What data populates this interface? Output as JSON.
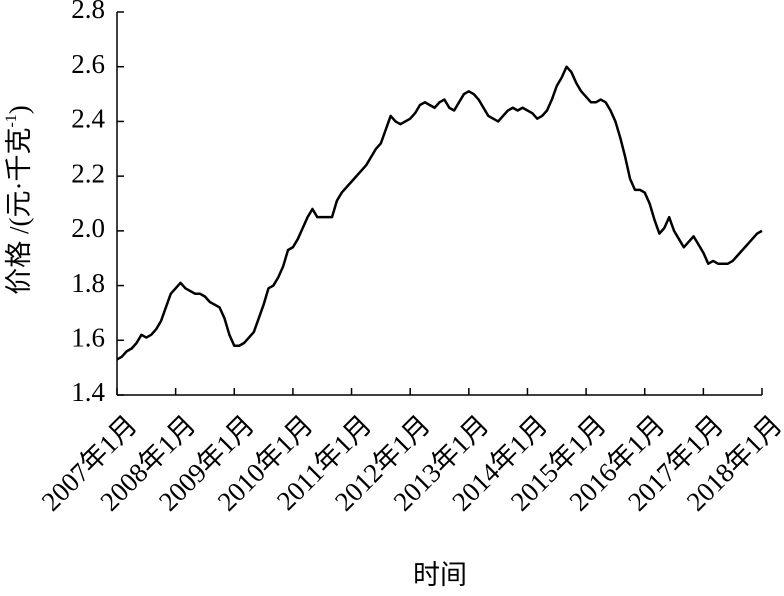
{
  "chart_data": {
    "type": "line",
    "y_label": {
      "text": "价格 /(元·千克",
      "superscript": "-1",
      "close": ")"
    },
    "x_label": "时间",
    "x": [
      "2007-01",
      "2007-02",
      "2007-03",
      "2007-04",
      "2007-05",
      "2007-06",
      "2007-07",
      "2007-08",
      "2007-09",
      "2007-10",
      "2007-11",
      "2007-12",
      "2008-01",
      "2008-02",
      "2008-03",
      "2008-04",
      "2008-05",
      "2008-06",
      "2008-07",
      "2008-08",
      "2008-09",
      "2008-10",
      "2008-11",
      "2008-12",
      "2009-01",
      "2009-02",
      "2009-03",
      "2009-04",
      "2009-05",
      "2009-06",
      "2009-07",
      "2009-08",
      "2009-09",
      "2009-10",
      "2009-11",
      "2009-12",
      "2010-01",
      "2010-02",
      "2010-03",
      "2010-04",
      "2010-05",
      "2010-06",
      "2010-07",
      "2010-08",
      "2010-09",
      "2010-10",
      "2010-11",
      "2010-12",
      "2011-01",
      "2011-02",
      "2011-03",
      "2011-04",
      "2011-05",
      "2011-06",
      "2011-07",
      "2011-08",
      "2011-09",
      "2011-10",
      "2011-11",
      "2011-12",
      "2012-01",
      "2012-02",
      "2012-03",
      "2012-04",
      "2012-05",
      "2012-06",
      "2012-07",
      "2012-08",
      "2012-09",
      "2012-10",
      "2012-11",
      "2012-12",
      "2013-01",
      "2013-02",
      "2013-03",
      "2013-04",
      "2013-05",
      "2013-06",
      "2013-07",
      "2013-08",
      "2013-09",
      "2013-10",
      "2013-11",
      "2013-12",
      "2014-01",
      "2014-02",
      "2014-03",
      "2014-04",
      "2014-05",
      "2014-06",
      "2014-07",
      "2014-08",
      "2014-09",
      "2014-10",
      "2014-11",
      "2014-12",
      "2015-01",
      "2015-02",
      "2015-03",
      "2015-04",
      "2015-05",
      "2015-06",
      "2015-07",
      "2015-08",
      "2015-09",
      "2015-10",
      "2015-11",
      "2015-12",
      "2016-01",
      "2016-02",
      "2016-03",
      "2016-04",
      "2016-05",
      "2016-06",
      "2016-07",
      "2016-08",
      "2016-09",
      "2016-10",
      "2016-11",
      "2016-12",
      "2017-01",
      "2017-02",
      "2017-03",
      "2017-04",
      "2017-05",
      "2017-06",
      "2017-07",
      "2017-08",
      "2017-09",
      "2017-10",
      "2017-11",
      "2017-12",
      "2018-01"
    ],
    "values": [
      1.53,
      1.54,
      1.56,
      1.57,
      1.59,
      1.62,
      1.61,
      1.62,
      1.64,
      1.67,
      1.72,
      1.77,
      1.79,
      1.81,
      1.79,
      1.78,
      1.77,
      1.77,
      1.76,
      1.74,
      1.73,
      1.72,
      1.68,
      1.62,
      1.58,
      1.58,
      1.59,
      1.61,
      1.63,
      1.68,
      1.73,
      1.79,
      1.8,
      1.83,
      1.87,
      1.93,
      1.94,
      1.97,
      2.01,
      2.05,
      2.08,
      2.05,
      2.05,
      2.05,
      2.05,
      2.11,
      2.14,
      2.16,
      2.18,
      2.2,
      2.22,
      2.24,
      2.27,
      2.3,
      2.32,
      2.37,
      2.42,
      2.4,
      2.39,
      2.4,
      2.41,
      2.43,
      2.46,
      2.47,
      2.46,
      2.45,
      2.47,
      2.48,
      2.45,
      2.44,
      2.47,
      2.5,
      2.51,
      2.5,
      2.48,
      2.45,
      2.42,
      2.41,
      2.4,
      2.42,
      2.44,
      2.45,
      2.44,
      2.45,
      2.44,
      2.43,
      2.41,
      2.42,
      2.44,
      2.48,
      2.53,
      2.56,
      2.6,
      2.58,
      2.54,
      2.51,
      2.49,
      2.47,
      2.47,
      2.48,
      2.47,
      2.44,
      2.4,
      2.34,
      2.27,
      2.19,
      2.15,
      2.15,
      2.14,
      2.1,
      2.04,
      1.99,
      2.01,
      2.05,
      2.0,
      1.97,
      1.94,
      1.96,
      1.98,
      1.95,
      1.92,
      1.88,
      1.89,
      1.88,
      1.88,
      1.88,
      1.89,
      1.91,
      1.93,
      1.95,
      1.97,
      1.99,
      2.0
    ],
    "color": "#000000",
    "xlim": [
      "2007-01",
      "2018-01"
    ],
    "xticks": [
      {
        "value": "2007-01",
        "label": "2007年1月"
      },
      {
        "value": "2008-01",
        "label": "2008年1月"
      },
      {
        "value": "2009-01",
        "label": "2009年1月"
      },
      {
        "value": "2010-01",
        "label": "2010年1月"
      },
      {
        "value": "2011-01",
        "label": "2011年1月"
      },
      {
        "value": "2012-01",
        "label": "2012年1月"
      },
      {
        "value": "2013-01",
        "label": "2013年1月"
      },
      {
        "value": "2014-01",
        "label": "2014年1月"
      },
      {
        "value": "2015-01",
        "label": "2015年1月"
      },
      {
        "value": "2016-01",
        "label": "2016年1月"
      },
      {
        "value": "2017-01",
        "label": "2017年1月"
      },
      {
        "value": "2018-01",
        "label": "2018年1月"
      }
    ],
    "ylim": [
      1.4,
      2.8
    ],
    "yticks": [
      {
        "value": 1.4,
        "label": "1.4"
      },
      {
        "value": 1.6,
        "label": "1.6"
      },
      {
        "value": 1.8,
        "label": "1.8"
      },
      {
        "value": 2.0,
        "label": "2.0"
      },
      {
        "value": 2.2,
        "label": "2.2"
      },
      {
        "value": 2.4,
        "label": "2.4"
      },
      {
        "value": 2.6,
        "label": "2.6"
      },
      {
        "value": 2.8,
        "label": "2.8"
      }
    ],
    "grid": false
  }
}
